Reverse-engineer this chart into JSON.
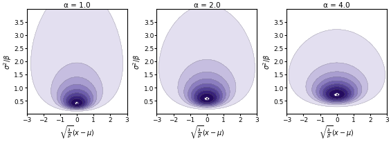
{
  "alpha_values": [
    1.0,
    2.0,
    4.0
  ],
  "titles": [
    "α = 1.0",
    "α = 2.0",
    "α = 4.0"
  ],
  "xlim": [
    -3,
    3
  ],
  "ylim": [
    0,
    4
  ],
  "xlabel": "$\\sqrt{\\frac{\\lambda}{\\beta}}(x - \\mu)$",
  "ylabel": "$\\sigma^2/\\beta$",
  "num_levels": 8,
  "figsize": [
    5.65,
    2.07
  ],
  "dpi": 100,
  "yticks": [
    0.5,
    1.0,
    1.5,
    2.0,
    2.5,
    3.0,
    3.5
  ],
  "xticks": [
    -3,
    -2,
    -1,
    0,
    1,
    2,
    3
  ]
}
